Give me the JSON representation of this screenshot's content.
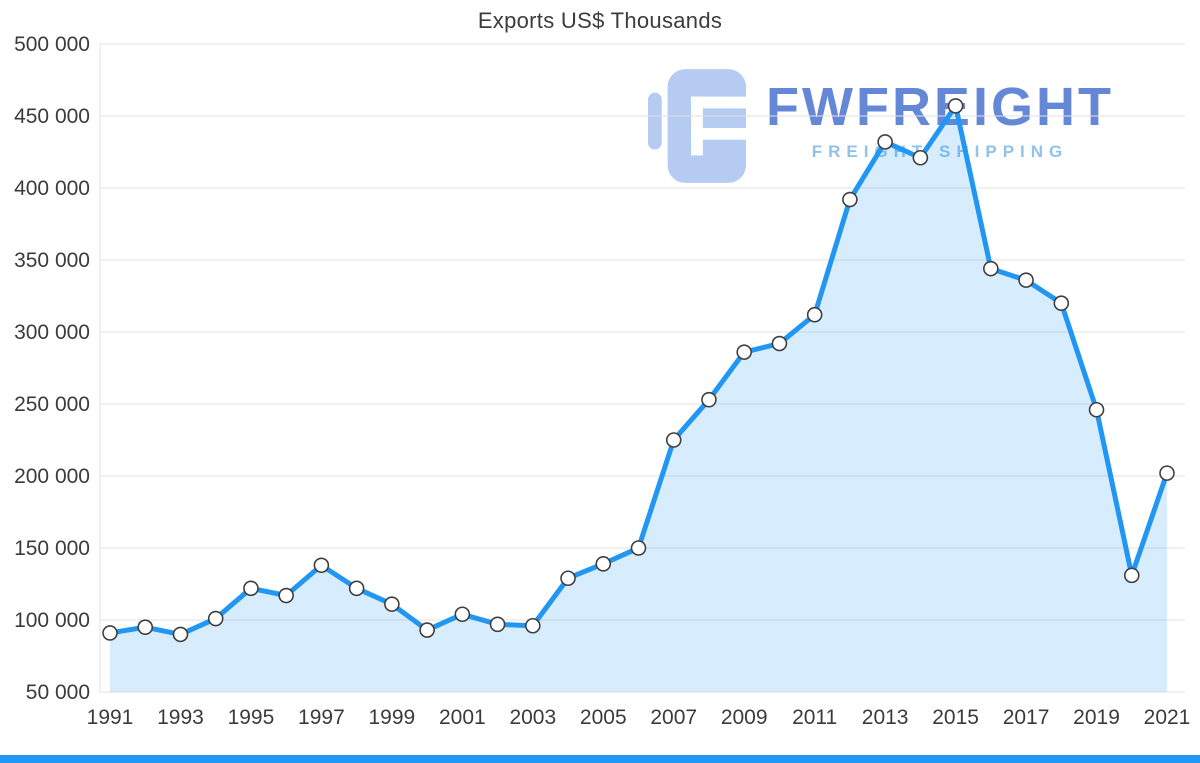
{
  "title": "Exports US$ Thousands",
  "watermark": {
    "brand": "FWFREIGHT",
    "tagline": "FREIGHT SHIPPING"
  },
  "colors": {
    "line": "#2196f3",
    "area_fill": "rgba(33,150,243,0.18)",
    "marker_fill": "#ffffff",
    "marker_stroke": "#3f3f3f",
    "grid": "#e2e2e2",
    "axis_text": "#3b3b3b",
    "accent_bar": "#2196f3",
    "watermark_icon": "#a9c3ef",
    "watermark_brand": "#4a74cf",
    "watermark_tagline": "#7cb9e8"
  },
  "chart_data": {
    "type": "area",
    "title": "Exports US$ Thousands",
    "x": [
      1991,
      1992,
      1993,
      1994,
      1995,
      1996,
      1997,
      1998,
      1999,
      2000,
      2001,
      2002,
      2003,
      2004,
      2005,
      2006,
      2007,
      2008,
      2009,
      2010,
      2011,
      2012,
      2013,
      2014,
      2015,
      2016,
      2017,
      2018,
      2019,
      2020,
      2021
    ],
    "values": [
      91000,
      95000,
      90000,
      101000,
      122000,
      117000,
      138000,
      122000,
      111000,
      93000,
      104000,
      97000,
      96000,
      129000,
      139000,
      150000,
      225000,
      253000,
      286000,
      292000,
      312000,
      392000,
      432000,
      421000,
      457000,
      344000,
      336000,
      320000,
      246000,
      131000,
      202000
    ],
    "ylim": [
      50000,
      500000
    ],
    "yticks": [
      50000,
      100000,
      150000,
      200000,
      250000,
      300000,
      350000,
      400000,
      450000,
      500000
    ],
    "ytick_labels": [
      "50 000",
      "100 000",
      "150 000",
      "200 000",
      "250 000",
      "300 000",
      "350 000",
      "400 000",
      "450 000",
      "500 000"
    ],
    "xtick_labels": [
      "1991",
      "1993",
      "1995",
      "1997",
      "1999",
      "2001",
      "2003",
      "2005",
      "2007",
      "2009",
      "2011",
      "2013",
      "2015",
      "2017",
      "2019",
      "2021"
    ],
    "xtick_every": 2,
    "grid": true,
    "legend": false,
    "marker": "circle"
  }
}
